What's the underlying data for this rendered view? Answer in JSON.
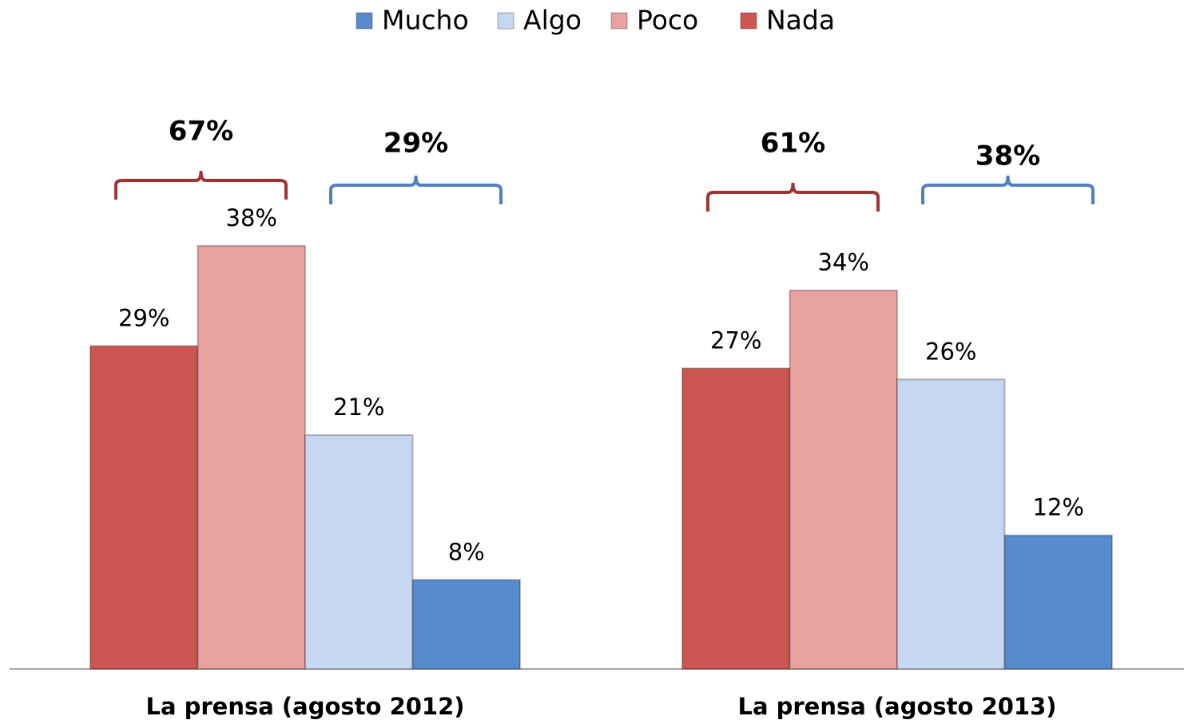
{
  "chart_data": {
    "type": "bar",
    "categories": [
      "La prensa (agosto 2012)",
      "La prensa (agosto 2013)"
    ],
    "series": [
      {
        "name": "Nada",
        "color": "#cd5652",
        "values": [
          29,
          27
        ],
        "value_labels": [
          "29%",
          "27%"
        ]
      },
      {
        "name": "Poco",
        "color": "#e7a19f",
        "values": [
          38,
          34
        ],
        "value_labels": [
          "38%",
          "34%"
        ]
      },
      {
        "name": "Algo",
        "color": "#c6d8f0",
        "values": [
          21,
          26
        ],
        "value_labels": [
          "21%",
          "26%"
        ]
      },
      {
        "name": "Mucho",
        "color": "#578bcd",
        "values": [
          8,
          12
        ],
        "value_labels": [
          "8%",
          "12%"
        ]
      }
    ],
    "annotations": [
      {
        "value": 67,
        "label": "67%",
        "category": 0,
        "series": [
          "Nada",
          "Poco"
        ],
        "color": "#9e3532"
      },
      {
        "value": 29,
        "label": "29%",
        "category": 0,
        "series": [
          "Algo",
          "Mucho"
        ],
        "color": "#4f81bd"
      },
      {
        "value": 61,
        "label": "61%",
        "category": 1,
        "series": [
          "Nada",
          "Poco"
        ],
        "color": "#9e3532"
      },
      {
        "value": 38,
        "label": "38%",
        "category": 1,
        "series": [
          "Algo",
          "Mucho"
        ],
        "color": "#4f81bd"
      }
    ]
  }
}
